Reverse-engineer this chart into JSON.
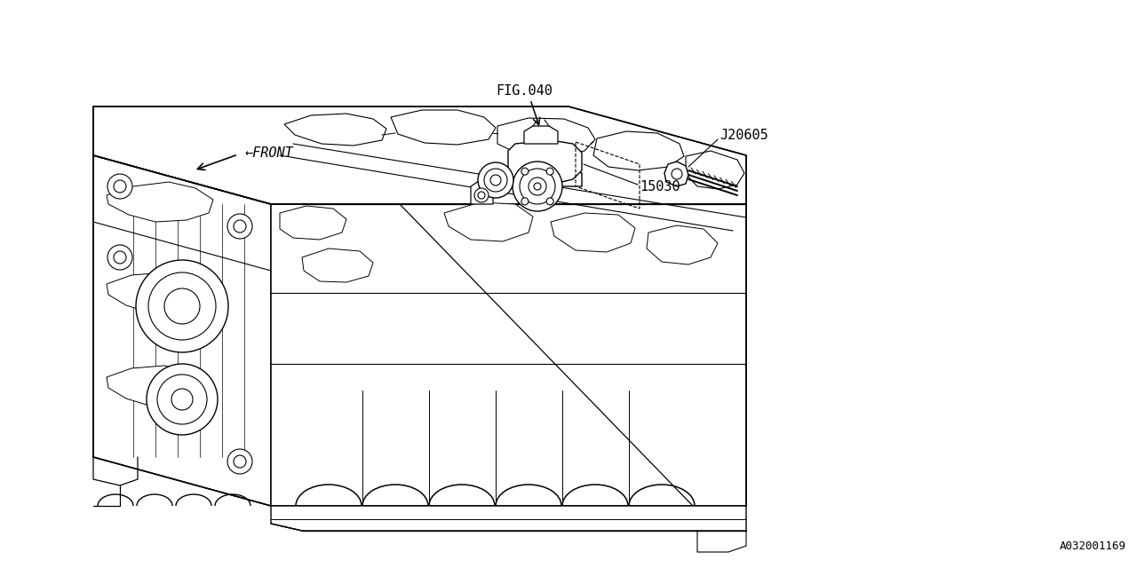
{
  "bg_color": "#ffffff",
  "lc": "#000000",
  "fig_w": 12.8,
  "fig_h": 6.4,
  "dpi": 100,
  "label_fig040": "FIG.040",
  "label_j20605": "J20605",
  "label_15030": "15030",
  "label_front": "←FRONT",
  "label_partnum": "A032001169",
  "font": "monospace",
  "fs_main": 11,
  "fs_small": 9
}
